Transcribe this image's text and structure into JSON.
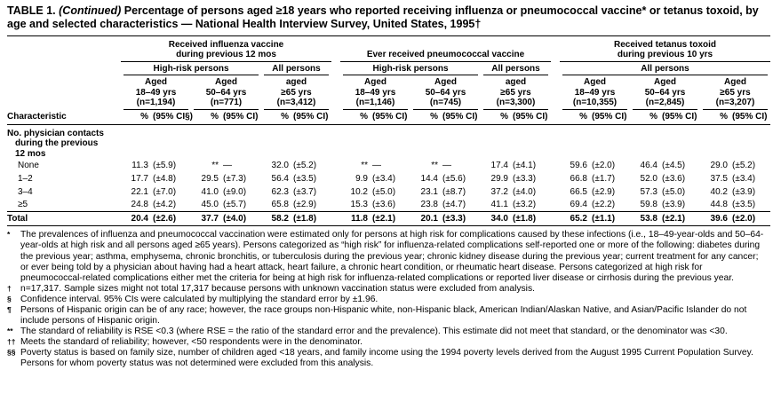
{
  "title": {
    "prefix": "TABLE 1.",
    "continued": "(Continued)",
    "rest": "Percentage of persons aged ≥18 years who reported receiving influenza or pneumococcal vaccine* or tetanus toxoid, by age and selected characteristics — National Health Interview Survey, United States, 1995†"
  },
  "table": {
    "characteristic_header": "Characteristic",
    "groups": [
      {
        "title_line1": "Received influenza vaccine",
        "title_line2": "during previous 12 mos"
      },
      {
        "title_line1": "Ever received pneumococcal vaccine"
      },
      {
        "title_line1": "Received tetanus toxoid",
        "title_line2": "during previous 10 yrs"
      }
    ],
    "subgroups": {
      "high_risk": "High-risk persons",
      "all_persons": "All persons"
    },
    "columns": [
      {
        "l1": "Aged",
        "l2": "18–49 yrs",
        "n": "(n=1,194)",
        "pct": "%",
        "ci": "(95% CI§)"
      },
      {
        "l1": "Aged",
        "l2": "50–64 yrs",
        "n": "(n=771)",
        "pct": "%",
        "ci": "(95% CI)"
      },
      {
        "l1": "aged",
        "l2": "≥65 yrs",
        "n": "(n=3,412)",
        "pct": "%",
        "ci": "(95% CI)"
      },
      {
        "l1": "Aged",
        "l2": "18–49 yrs",
        "n": "(n=1,146)",
        "pct": "%",
        "ci": "(95% CI)"
      },
      {
        "l1": "Aged",
        "l2": "50–64 yrs",
        "n": "(n=745)",
        "pct": "%",
        "ci": "(95% CI)"
      },
      {
        "l1": "aged",
        "l2": "≥65 yrs",
        "n": "(n=3,300)",
        "pct": "%",
        "ci": "(95% CI)"
      },
      {
        "l1": "Aged",
        "l2": "18–49 yrs",
        "n": "(n=10,355)",
        "pct": "%",
        "ci": "(95% CI)"
      },
      {
        "l1": "Aged",
        "l2": "50–64 yrs",
        "n": "(n=2,845)",
        "pct": "%",
        "ci": "(95% CI)"
      },
      {
        "l1": "Aged",
        "l2": "≥65 yrs",
        "n": "(n=3,207)",
        "pct": "%",
        "ci": "(95% CI)"
      }
    ],
    "section": {
      "line1": "No. physician contacts",
      "line2": "during the previous",
      "line3": "12 mos"
    },
    "rows": [
      {
        "label": "None",
        "v": [
          "11.3",
          "**",
          "32.0",
          "**",
          "**",
          "17.4",
          "59.6",
          "46.4",
          "29.0"
        ],
        "c": [
          "(±5.9)",
          "—",
          "(±5.2)",
          "—",
          "—",
          "(±4.1)",
          "(±2.0)",
          "(±4.5)",
          "(±5.2)"
        ]
      },
      {
        "label": "1–2",
        "v": [
          "17.7",
          "29.5",
          "56.4",
          "9.9",
          "14.4",
          "29.9",
          "66.8",
          "52.0",
          "37.5"
        ],
        "c": [
          "(±4.8)",
          "(±7.3)",
          "(±3.5)",
          "(±3.4)",
          "(±5.6)",
          "(±3.3)",
          "(±1.7)",
          "(±3.6)",
          "(±3.4)"
        ]
      },
      {
        "label": "3–4",
        "v": [
          "22.1",
          "41.0",
          "62.3",
          "10.2",
          "23.1",
          "37.2",
          "66.5",
          "57.3",
          "40.2"
        ],
        "c": [
          "(±7.0)",
          "(±9.0)",
          "(±3.7)",
          "(±5.0)",
          "(±8.7)",
          "(±4.0)",
          "(±2.9)",
          "(±5.0)",
          "(±3.9)"
        ]
      },
      {
        "label": "≥5",
        "v": [
          "24.8",
          "45.0",
          "65.8",
          "15.3",
          "23.8",
          "41.1",
          "69.4",
          "59.8",
          "44.8"
        ],
        "c": [
          "(±4.2)",
          "(±5.7)",
          "(±2.9)",
          "(±3.6)",
          "(±4.7)",
          "(±3.2)",
          "(±2.2)",
          "(±3.9)",
          "(±3.5)"
        ]
      }
    ],
    "total_row": {
      "label": "Total",
      "v": [
        "20.4",
        "37.7",
        "58.2",
        "11.8",
        "20.1",
        "34.0",
        "65.2",
        "53.8",
        "39.6"
      ],
      "c": [
        "(±2.6)",
        "(±4.0)",
        "(±1.8)",
        "(±2.1)",
        "(±3.3)",
        "(±1.8)",
        "(±1.1)",
        "(±2.1)",
        "(±2.0)"
      ]
    }
  },
  "footnotes": [
    {
      "marker": "*",
      "text": "The prevalences of influenza and pneumococcal vaccination were estimated only for persons at high risk for complications caused by these infections (i.e., 18–49-year-olds and 50–64-year-olds at high risk and all persons aged ≥65 years). Persons categorized as “high risk” for influenza-related complications self-reported one or more of the following: diabetes during the previous year; asthma, emphysema, chronic bronchitis, or tuberculosis during the previous year; chronic kidney disease during the previous year; current treatment for any cancer; or ever being told by a physician about having had a heart attack, heart failure, a chronic heart condition, or rheumatic heart disease. Persons categorized at high risk for pneumococcal-related complications either met the criteria for being at high risk for influenza-related complications or reported liver disease or cirrhosis during the previous year."
    },
    {
      "marker": "†",
      "text": "n=17,317. Sample sizes might not total 17,317 because persons with unknown vaccination status were excluded from analysis."
    },
    {
      "marker": "§",
      "text": "Confidence interval. 95% CIs were calculated by multiplying the standard error by ±1.96."
    },
    {
      "marker": "¶",
      "text": "Persons of Hispanic origin can be of any race; however, the race groups non-Hispanic white, non-Hispanic black, American Indian/Alaskan Native, and Asian/Pacific Islander do not include persons of Hispanic origin."
    },
    {
      "marker": "**",
      "text": "The standard of reliability is RSE <0.3 (where RSE = the ratio of the standard error and the prevalence). This estimate did not meet that standard, or the denominator was <30."
    },
    {
      "marker": "††",
      "text": "Meets the standard of reliability; however, <50 respondents were in the denominator."
    },
    {
      "marker": "§§",
      "text": "Poverty status is based on family size, number of children aged <18 years, and family income using the 1994 poverty levels derived from the August 1995 Current Population Survey. Persons for whom poverty status was not determined were excluded from this analysis."
    }
  ]
}
